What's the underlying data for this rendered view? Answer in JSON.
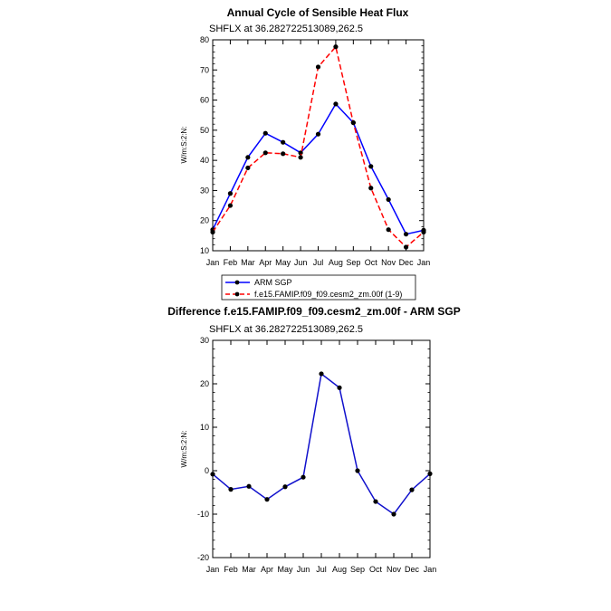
{
  "chart_data": [
    {
      "type": "line",
      "title": "Annual Cycle of Sensible Heat Flux",
      "subtitle": "SHFLX at 36.282722513089,262.5",
      "ylabel": "W/m:S:2:N:",
      "xlabel": "",
      "ylim": [
        10,
        80
      ],
      "yticks": [
        "10",
        "20",
        "30",
        "40",
        "50",
        "60",
        "70",
        "80"
      ],
      "categories": [
        "Jan",
        "Feb",
        "Mar",
        "Apr",
        "May",
        "Jun",
        "Jul",
        "Aug",
        "Sep",
        "Oct",
        "Nov",
        "Dec",
        "Jan"
      ],
      "series": [
        {
          "name": "ARM SGP",
          "color": "#0000ff",
          "dash": "solid",
          "values": [
            17,
            29,
            41,
            49,
            46,
            42.5,
            48.7,
            58.7,
            52.5,
            38,
            27,
            15.5,
            16.8
          ]
        },
        {
          "name": "f.e15.FAMIP.f09_f09.cesm2_zm.00f (1-9)",
          "color": "#ff0000",
          "dash": "dashed",
          "values": [
            16.2,
            25,
            37.5,
            42.5,
            42.2,
            41,
            71,
            77.7,
            52.5,
            30.8,
            17,
            11.2,
            16.2
          ]
        }
      ],
      "legend": "bottom-left"
    },
    {
      "type": "line",
      "title": "Difference f.e15.FAMIP.f09_f09.cesm2_zm.00f - ARM SGP",
      "subtitle": "SHFLX at 36.282722513089,262.5",
      "ylabel": "W/m:S:2:N:",
      "xlabel": "",
      "ylim": [
        -20,
        30
      ],
      "yticks": [
        "-20",
        "-10",
        "0",
        "10",
        "20",
        "30"
      ],
      "categories": [
        "Jan",
        "Feb",
        "Mar",
        "Apr",
        "May",
        "Jun",
        "Jul",
        "Aug",
        "Sep",
        "Oct",
        "Nov",
        "Dec",
        "Jan"
      ],
      "series": [
        {
          "name": "Difference",
          "color": "#1010cc",
          "dash": "solid",
          "values": [
            -0.8,
            -4.3,
            -3.6,
            -6.6,
            -3.7,
            -1.5,
            22.3,
            19.1,
            0,
            -7.1,
            -10,
            -4.4,
            -0.7
          ]
        }
      ]
    }
  ]
}
